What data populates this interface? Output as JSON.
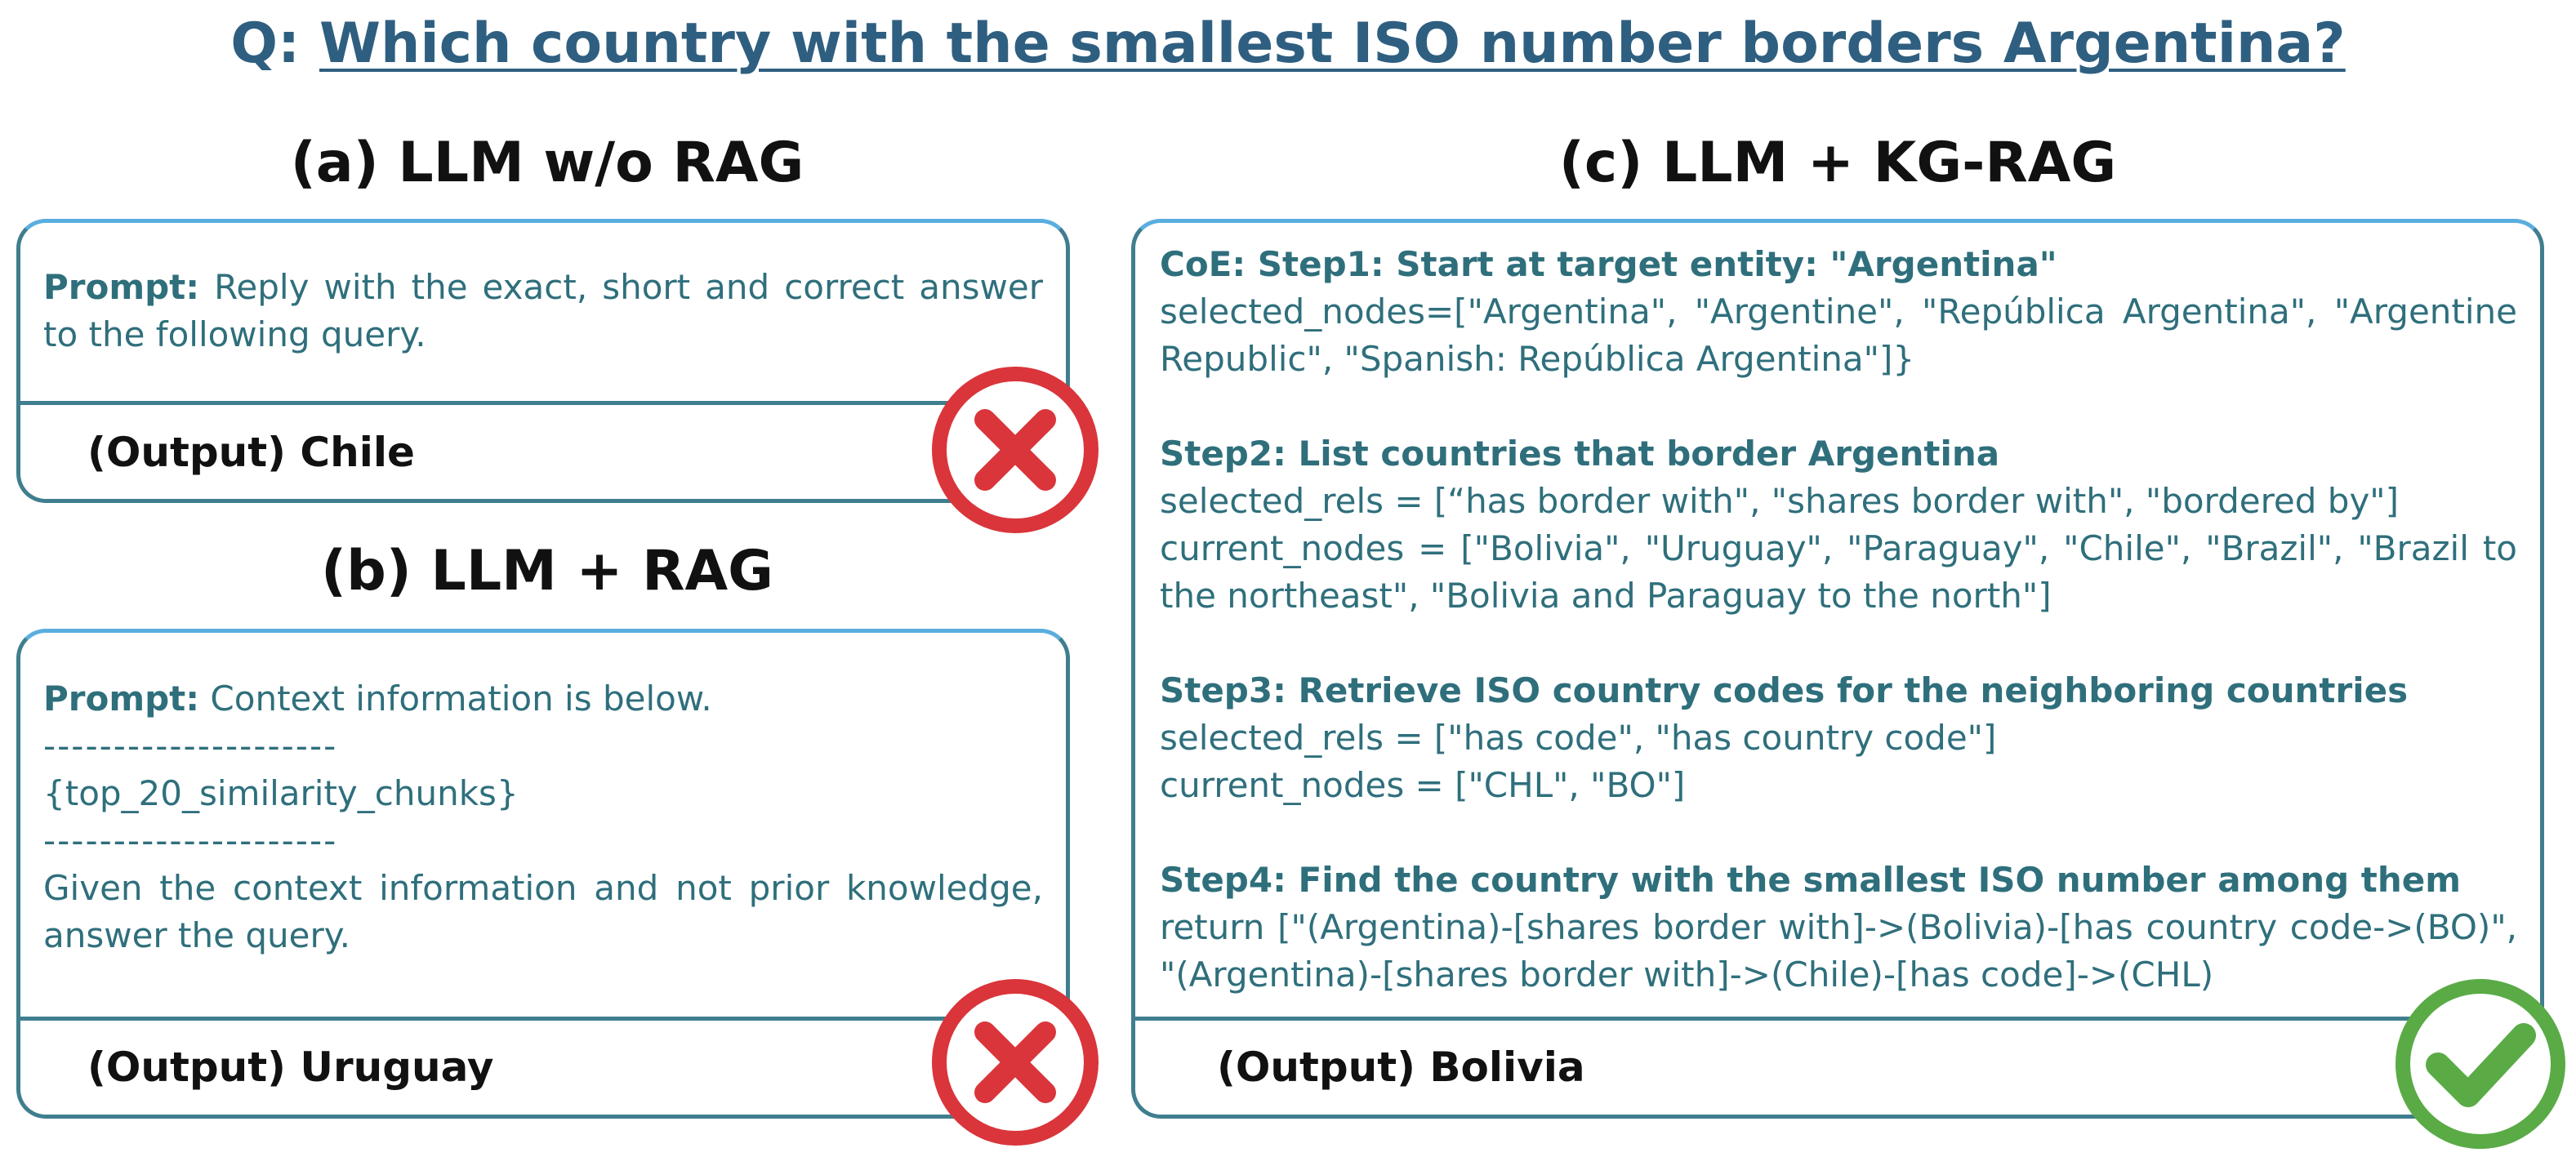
{
  "question": {
    "prefix": "Q:",
    "text": "Which country with the smallest ISO number borders Argentina?"
  },
  "panel_a": {
    "title": "(a) LLM w/o RAG",
    "prompt_label": "Prompt:",
    "prompt_text": "Reply with the exact, short and correct answer to the following query.",
    "output": "(Output) Chile",
    "result_icon": "cross-icon"
  },
  "panel_b": {
    "title": "(b) LLM + RAG",
    "prompt_label": "Prompt:",
    "prompt_line1": "Context information is below.",
    "separator": "---------------------",
    "chunks": "{top_20_similarity_chunks}",
    "instruction": "Given the context information and not prior knowledge, answer the query.",
    "output": "(Output) Uruguay",
    "result_icon": "cross-icon"
  },
  "panel_c": {
    "title": "(c) LLM + KG-RAG",
    "step1_title": "CoE: Step1: Start at target entity: \"Argentina\"",
    "step1_line": "selected_nodes=[\"Argentina\", \"Argentine\", \"República Argentina\", \"Argentine Republic\", \"Spanish: República Argentina\"]}",
    "step2_title": "Step2: List countries that border Argentina",
    "step2_rels": "selected_rels = [“has border with\", \"shares border with\", \"bordered by\"]",
    "step2_nodes": "current_nodes = [\"Bolivia\", \"Uruguay\", \"Paraguay\", \"Chile\", \"Brazil\", \"Brazil to the northeast\", \"Bolivia and Paraguay to the north\"]",
    "step3_title": "Step3: Retrieve ISO country codes for the neighboring countries",
    "step3_rels": "selected_rels = [\"has code\", \"has country code\"]",
    "step3_nodes": "current_nodes = [\"CHL\", \"BO\"]",
    "step4_title": "Step4: Find the country with the smallest ISO number among them",
    "step4_return": "return [\"(Argentina)-[shares border with]->(Bolivia)-[has country code->(BO)\", \"(Argentina)-[shares border with]->(Chile)-[has code]->(CHL)",
    "output": "(Output) Bolivia",
    "result_icon": "check-icon"
  },
  "colors": {
    "question": "#2f5f80",
    "prompt_text": "#2f6f7c",
    "panel_border": "#3f7e8e",
    "panel_top": "#5aaedf",
    "cross": "#d9353b",
    "check": "#5aab46"
  }
}
